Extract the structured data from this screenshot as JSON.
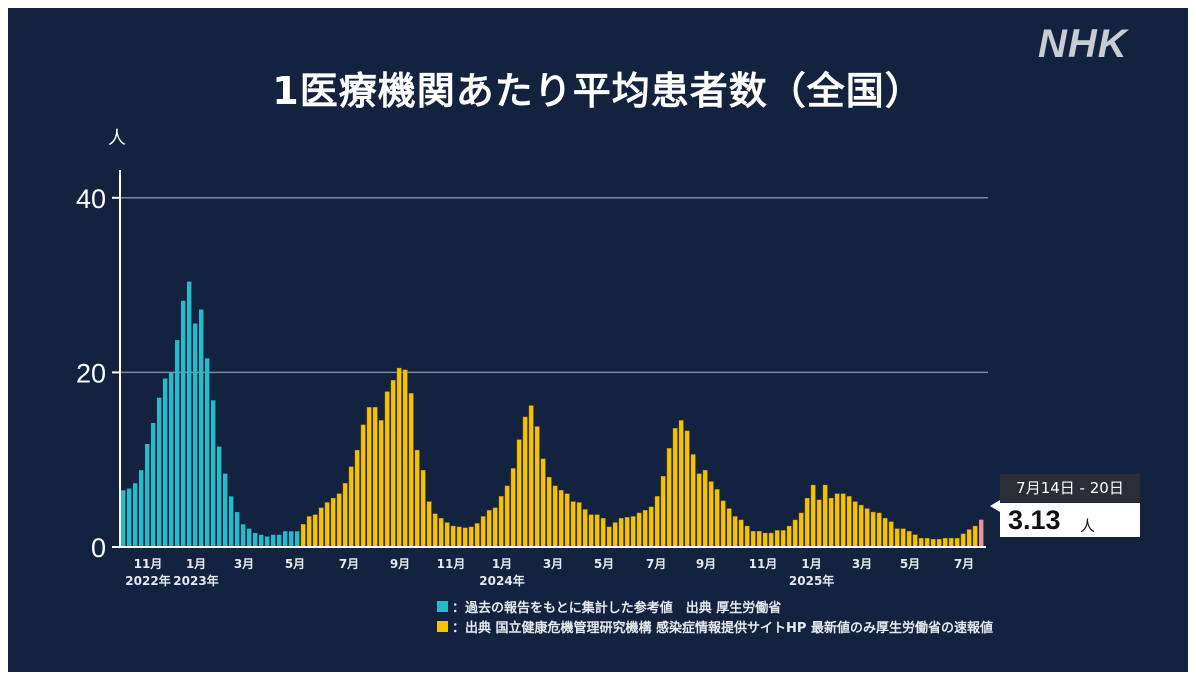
{
  "header": {
    "title": "1医療機関あたり平均患者数（全国）",
    "logo": "NHK"
  },
  "callout": {
    "period": "7月14日 - 20日",
    "value": "3.13",
    "unit": "人"
  },
  "legend": [
    {
      "color": "#22bccb",
      "text": "：過去の報告をもとに集計した参考値　出典 厚生労働省"
    },
    {
      "color": "#f5c400",
      "text": "：出典 国立健康危機管理研究機構 感染症情報提供サイトHP 最新値のみ厚生労働省の速報値"
    }
  ],
  "chart_data": {
    "type": "bar",
    "title": "1医療機関あたり平均患者数（全国）",
    "ylabel": "人",
    "xlabel": "",
    "ylim": [
      0,
      43
    ],
    "yticks": [
      {
        "value": 0,
        "label": "0"
      },
      {
        "value": 20,
        "label": "20"
      },
      {
        "value": 40,
        "label": "40"
      }
    ],
    "grid": true,
    "colors": {
      "reference": "#22bccb",
      "official": "#f5c400",
      "latest": "#e8939b"
    },
    "series": [
      {
        "name": "reference",
        "values": [
          6.5,
          6.7,
          7.3,
          8.8,
          11.8,
          14.2,
          17.1,
          19.3,
          20.0,
          23.7,
          28.2,
          30.4,
          25.6,
          27.2,
          21.6,
          16.8,
          11.5,
          8.4,
          5.8,
          4.0,
          2.6,
          2.1,
          1.6,
          1.4,
          1.2,
          1.4,
          1.4,
          1.8,
          1.8,
          1.8
        ]
      },
      {
        "name": "official",
        "values": [
          2.6,
          3.5,
          3.7,
          4.5,
          5.1,
          5.6,
          6.1,
          7.3,
          9.2,
          11.1,
          14.0,
          16.0,
          16.0,
          14.5,
          17.8,
          19.1,
          20.5,
          20.3,
          17.6,
          11.1,
          8.8,
          5.2,
          3.8,
          3.3,
          2.8,
          2.4,
          2.3,
          2.2,
          2.3,
          2.7,
          3.5,
          4.2,
          4.5,
          5.8,
          7.0,
          9.0,
          12.3,
          14.9,
          16.2,
          13.8,
          10.1,
          8.0,
          7.0,
          6.5,
          6.1,
          5.2,
          5.1,
          4.3,
          3.7,
          3.7,
          3.3,
          2.3,
          2.8,
          3.3,
          3.4,
          3.5,
          3.9,
          4.2,
          4.6,
          5.8,
          8.1,
          11.3,
          13.6,
          14.5,
          13.3,
          10.6,
          8.4,
          8.8,
          7.5,
          6.6,
          5.3,
          4.4,
          3.5,
          3.1,
          2.4,
          1.8,
          1.8,
          1.6,
          1.6,
          1.9,
          1.9,
          2.4,
          3.1,
          3.9,
          5.6,
          7.1,
          5.4,
          7.1,
          5.6,
          6.1,
          6.1,
          5.8,
          5.2,
          4.8,
          4.4,
          4.0,
          3.9,
          3.3,
          2.9,
          2.1,
          2.1,
          1.8,
          1.4,
          1.0,
          1.0,
          0.9,
          0.9,
          1.0,
          1.0,
          1.0,
          1.5,
          2.0,
          2.4
        ]
      },
      {
        "name": "latest",
        "values": [
          3.13
        ]
      }
    ],
    "xticks": [
      {
        "index": 4,
        "label": "11月",
        "year": "2022年"
      },
      {
        "index": 12,
        "label": "1月",
        "year": "2023年"
      },
      {
        "index": 20,
        "label": "3月"
      },
      {
        "index": 28.5,
        "label": "5月"
      },
      {
        "index": 37.5,
        "label": "7月"
      },
      {
        "index": 46,
        "label": "9月"
      },
      {
        "index": 54.5,
        "label": "11月"
      },
      {
        "index": 63,
        "label": "1月",
        "year": "2024年"
      },
      {
        "index": 71.5,
        "label": "3月"
      },
      {
        "index": 80,
        "label": "5月"
      },
      {
        "index": 88.7,
        "label": "7月"
      },
      {
        "index": 97,
        "label": "9月"
      },
      {
        "index": 106.5,
        "label": "11月"
      },
      {
        "index": 114.6,
        "label": "1月",
        "year": "2025年"
      },
      {
        "index": 123,
        "label": "3月"
      },
      {
        "index": 131,
        "label": "5月"
      },
      {
        "index": 140,
        "label": "7月"
      }
    ]
  }
}
